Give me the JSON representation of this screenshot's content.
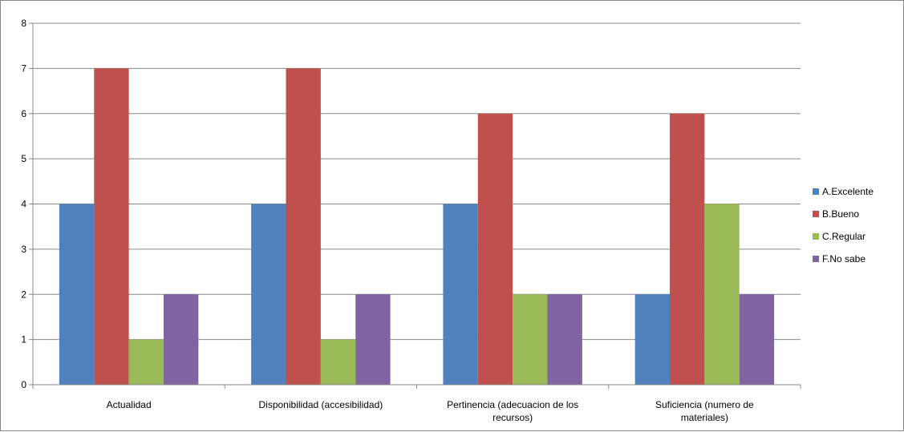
{
  "chart_data": {
    "type": "bar",
    "categories": [
      [
        "Actualidad"
      ],
      [
        "Disponibilidad (accesibilidad)"
      ],
      [
        "Pertinencia (adecuacion de los",
        "recursos)"
      ],
      [
        "Suficiencia (numero de",
        "materiales)"
      ]
    ],
    "series": [
      {
        "name": "A.Excelente",
        "color": "#4f81bd",
        "values": [
          4,
          4,
          4,
          2
        ]
      },
      {
        "name": "B.Bueno",
        "color": "#c0504d",
        "values": [
          7,
          7,
          6,
          6
        ]
      },
      {
        "name": "C.Regular",
        "color": "#9bbb59",
        "values": [
          1,
          1,
          2,
          4
        ]
      },
      {
        "name": "F.No sabe",
        "color": "#8064a2",
        "values": [
          2,
          2,
          2,
          2
        ]
      }
    ],
    "ylim": [
      0,
      8
    ],
    "yticks": [
      0,
      1,
      2,
      3,
      4,
      5,
      6,
      7,
      8
    ],
    "grid": true,
    "legend_position": "right"
  }
}
